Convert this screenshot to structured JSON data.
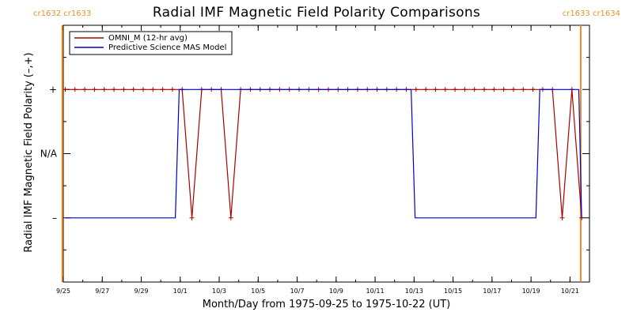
{
  "chart_data": {
    "type": "line",
    "title": "Radial IMF Magnetic Field Polarity Comparisons",
    "xlabel": "Month/Day from 1975-09-25 to 1975-10-22 (UT)",
    "ylabel": "Radial IMF Magnetic Field Polarity (–,+)",
    "carrington_labels": {
      "left": "cr1632 cr1633",
      "right": "cr1633 cr1634"
    },
    "carrington_boundaries": [
      -0.05,
      26.55
    ],
    "x_start": "1975-09-25",
    "xlim_days": [
      0,
      27
    ],
    "x_ticks": [
      {
        "day": 0,
        "label": "9/25"
      },
      {
        "day": 2,
        "label": "9/27"
      },
      {
        "day": 4,
        "label": "9/29"
      },
      {
        "day": 6,
        "label": "10/1"
      },
      {
        "day": 8,
        "label": "10/3"
      },
      {
        "day": 10,
        "label": "10/5"
      },
      {
        "day": 12,
        "label": "10/7"
      },
      {
        "day": 14,
        "label": "10/9"
      },
      {
        "day": 16,
        "label": "10/11"
      },
      {
        "day": 18,
        "label": "10/13"
      },
      {
        "day": 20,
        "label": "10/15"
      },
      {
        "day": 22,
        "label": "10/17"
      },
      {
        "day": 24,
        "label": "10/19"
      },
      {
        "day": 26,
        "label": "10/21"
      }
    ],
    "y_ticks": [
      {
        "value": 1,
        "label": "+"
      },
      {
        "value": 0,
        "label": "N/A"
      },
      {
        "value": -1,
        "label": "–"
      }
    ],
    "ylim": [
      -2,
      2
    ],
    "series": [
      {
        "name": "OMNI_M (12-hr avg)",
        "color": "#aa0000",
        "marker": "plus",
        "x": [
          0.1,
          0.6,
          1.1,
          1.6,
          2.1,
          2.6,
          3.1,
          3.6,
          4.1,
          4.6,
          5.1,
          5.6,
          6.1,
          6.6,
          7.1,
          7.6,
          8.1,
          8.6,
          9.1,
          9.6,
          10.1,
          10.6,
          11.1,
          11.6,
          12.1,
          12.6,
          13.1,
          13.6,
          14.1,
          14.6,
          15.1,
          15.6,
          16.1,
          16.6,
          17.1,
          17.6,
          18.1,
          18.6,
          19.1,
          19.6,
          20.1,
          20.6,
          21.1,
          21.6,
          22.1,
          22.6,
          23.1,
          23.6,
          24.1,
          24.6,
          25.1,
          25.6,
          26.1,
          26.6
        ],
        "values": [
          1,
          1,
          1,
          1,
          1,
          1,
          1,
          1,
          1,
          1,
          1,
          1,
          1,
          -1,
          1,
          1,
          1,
          -1,
          1,
          1,
          1,
          1,
          1,
          1,
          1,
          1,
          1,
          1,
          1,
          1,
          1,
          1,
          1,
          1,
          1,
          1,
          1,
          1,
          1,
          1,
          1,
          1,
          1,
          1,
          1,
          1,
          1,
          1,
          1,
          1,
          1,
          -1,
          1,
          -1
        ]
      },
      {
        "name": "Predictive Science MAS Model",
        "color": "#0000cc",
        "marker": "none",
        "x": [
          0.1,
          5.75,
          5.95,
          17.85,
          18.05,
          24.25,
          24.45,
          26.45,
          26.6
        ],
        "values": [
          -1,
          -1,
          1,
          1,
          -1,
          -1,
          1,
          1,
          -1
        ]
      }
    ],
    "grid": false,
    "legend_position": "top-left"
  }
}
